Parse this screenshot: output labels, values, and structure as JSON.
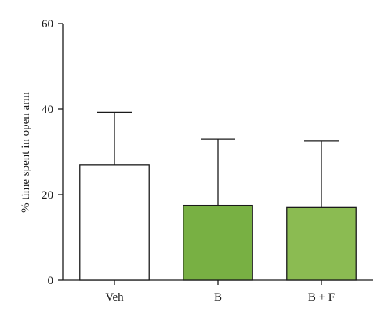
{
  "chart_data": {
    "type": "bar",
    "title": "",
    "xlabel": "",
    "ylabel": "% time spent in open arm",
    "categories": [
      "Veh",
      "B",
      "B + F"
    ],
    "values": [
      27,
      17.5,
      17
    ],
    "error_upper": [
      39.2,
      33,
      32.5
    ],
    "ylim": [
      0,
      60
    ],
    "yticks": [
      0,
      20,
      40,
      60
    ],
    "grid": false,
    "bar_colors": [
      "#ffffff",
      "#78b043",
      "#8bbb52"
    ],
    "edge_color": "#1a1a1a"
  }
}
